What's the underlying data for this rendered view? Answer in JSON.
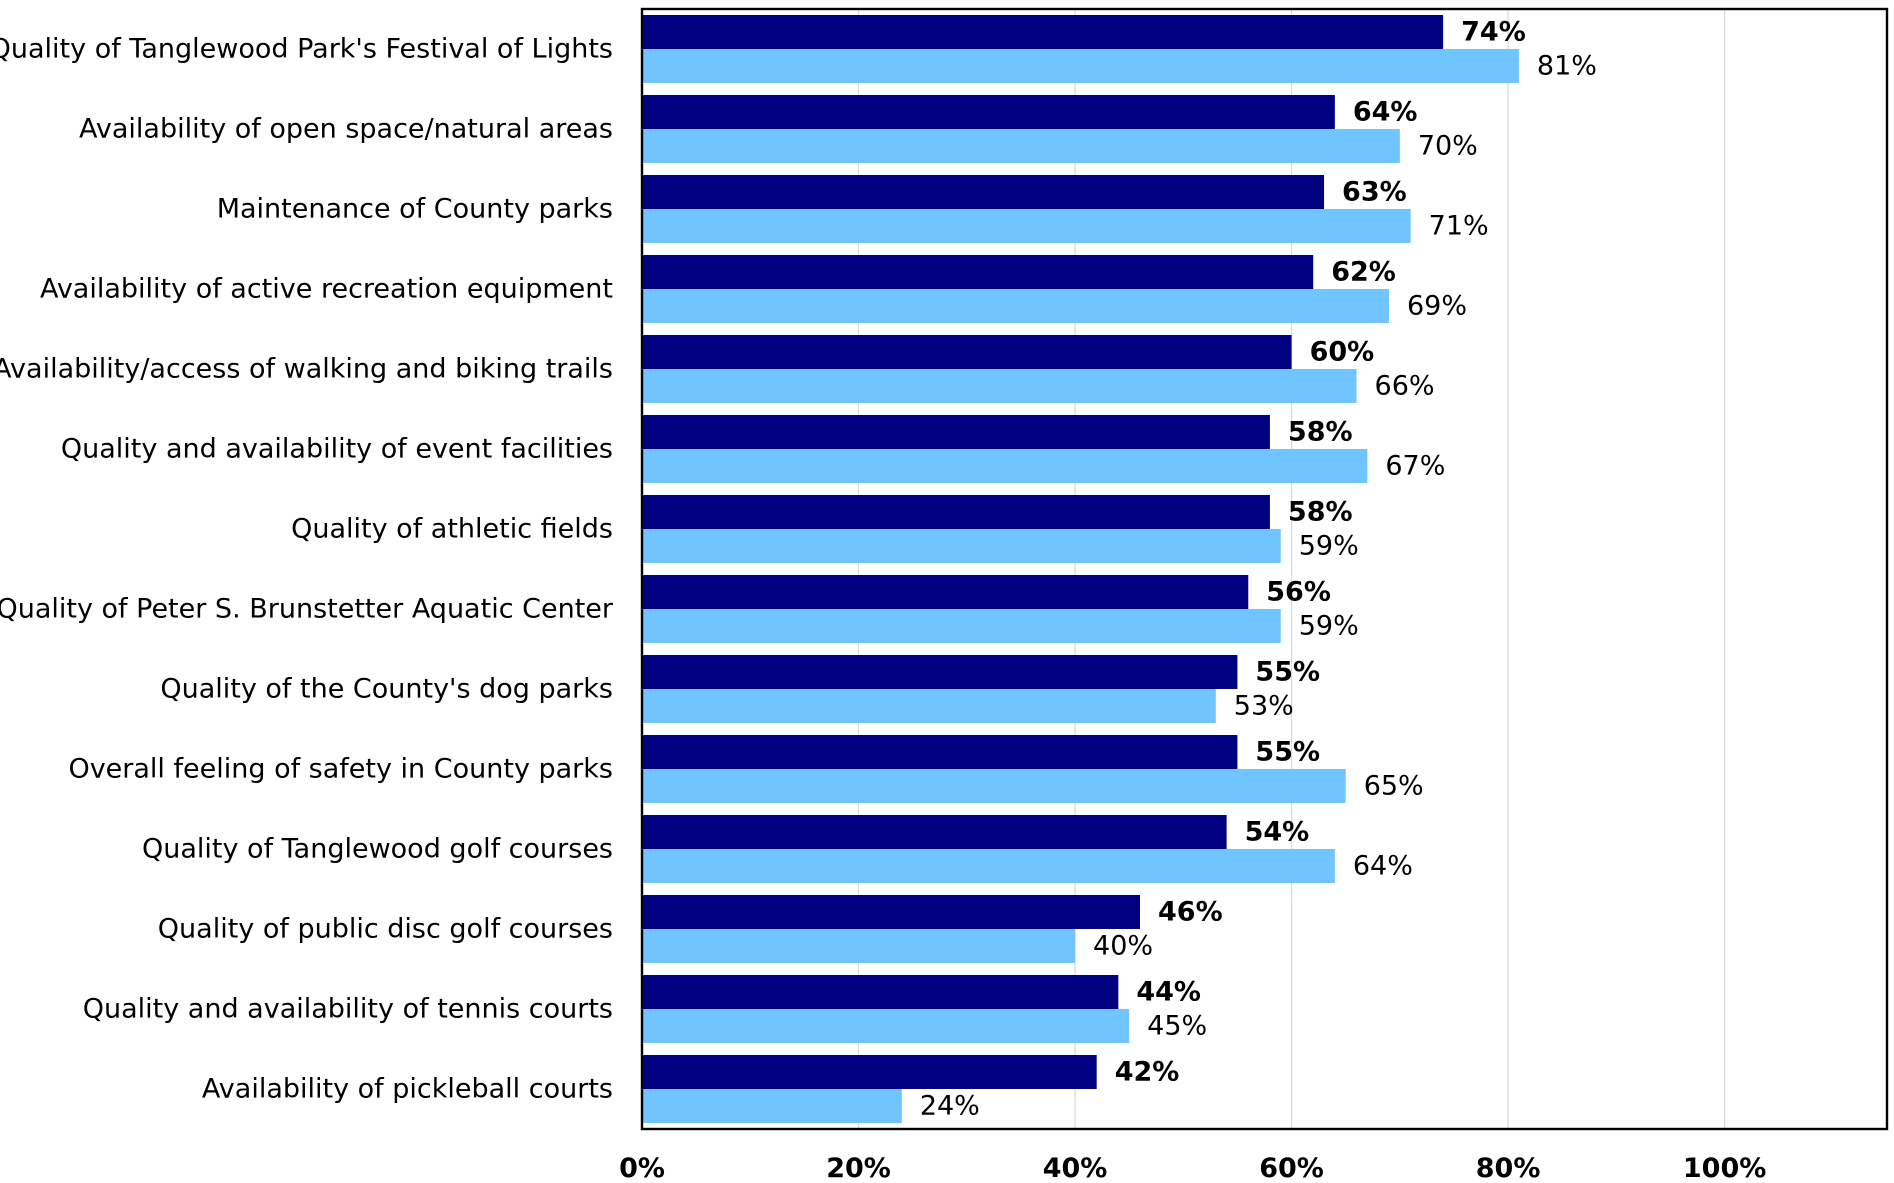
{
  "chart_data": {
    "type": "bar",
    "orientation": "horizontal",
    "title": "",
    "xlabel": "",
    "ylabel": "",
    "xlim": [
      0,
      115
    ],
    "grid": true,
    "legend": "none",
    "x_ticks": [
      {
        "value": 0,
        "label": "0%"
      },
      {
        "value": 20,
        "label": "20%"
      },
      {
        "value": 40,
        "label": "40%"
      },
      {
        "value": 60,
        "label": "60%"
      },
      {
        "value": 80,
        "label": "80%"
      },
      {
        "value": 100,
        "label": "100%"
      }
    ],
    "categories": [
      "Quality of Tanglewood Park's Festival of Lights",
      "Availability of open space/natural areas",
      "Maintenance of County parks",
      "Availability of active recreation equipment",
      "Availability/access of walking and biking trails",
      "Quality and availability of event facilities",
      "Quality of athletic fields",
      "Quality of Peter S. Brunstetter Aquatic Center",
      "Quality of the County's dog parks",
      "Overall feeling of safety in County parks",
      "Quality of Tanglewood golf courses",
      "Quality of public disc golf courses",
      "Quality and availability of tennis courts",
      "Availability of pickleball courts"
    ],
    "series": [
      {
        "color": "#000080",
        "values": [
          74,
          64,
          63,
          62,
          60,
          58,
          58,
          56,
          55,
          55,
          54,
          46,
          44,
          42
        ],
        "labels": [
          "74%",
          "64%",
          "63%",
          "62%",
          "60%",
          "58%",
          "58%",
          "56%",
          "55%",
          "55%",
          "54%",
          "46%",
          "44%",
          "42%"
        ]
      },
      {
        "color": "#70C4FF",
        "values": [
          81,
          70,
          71,
          69,
          66,
          67,
          59,
          59,
          53,
          65,
          64,
          40,
          45,
          24
        ],
        "labels": [
          "81%",
          "70%",
          "71%",
          "69%",
          "66%",
          "67%",
          "59%",
          "59%",
          "53%",
          "65%",
          "64%",
          "40%",
          "45%",
          "24%"
        ]
      }
    ]
  }
}
